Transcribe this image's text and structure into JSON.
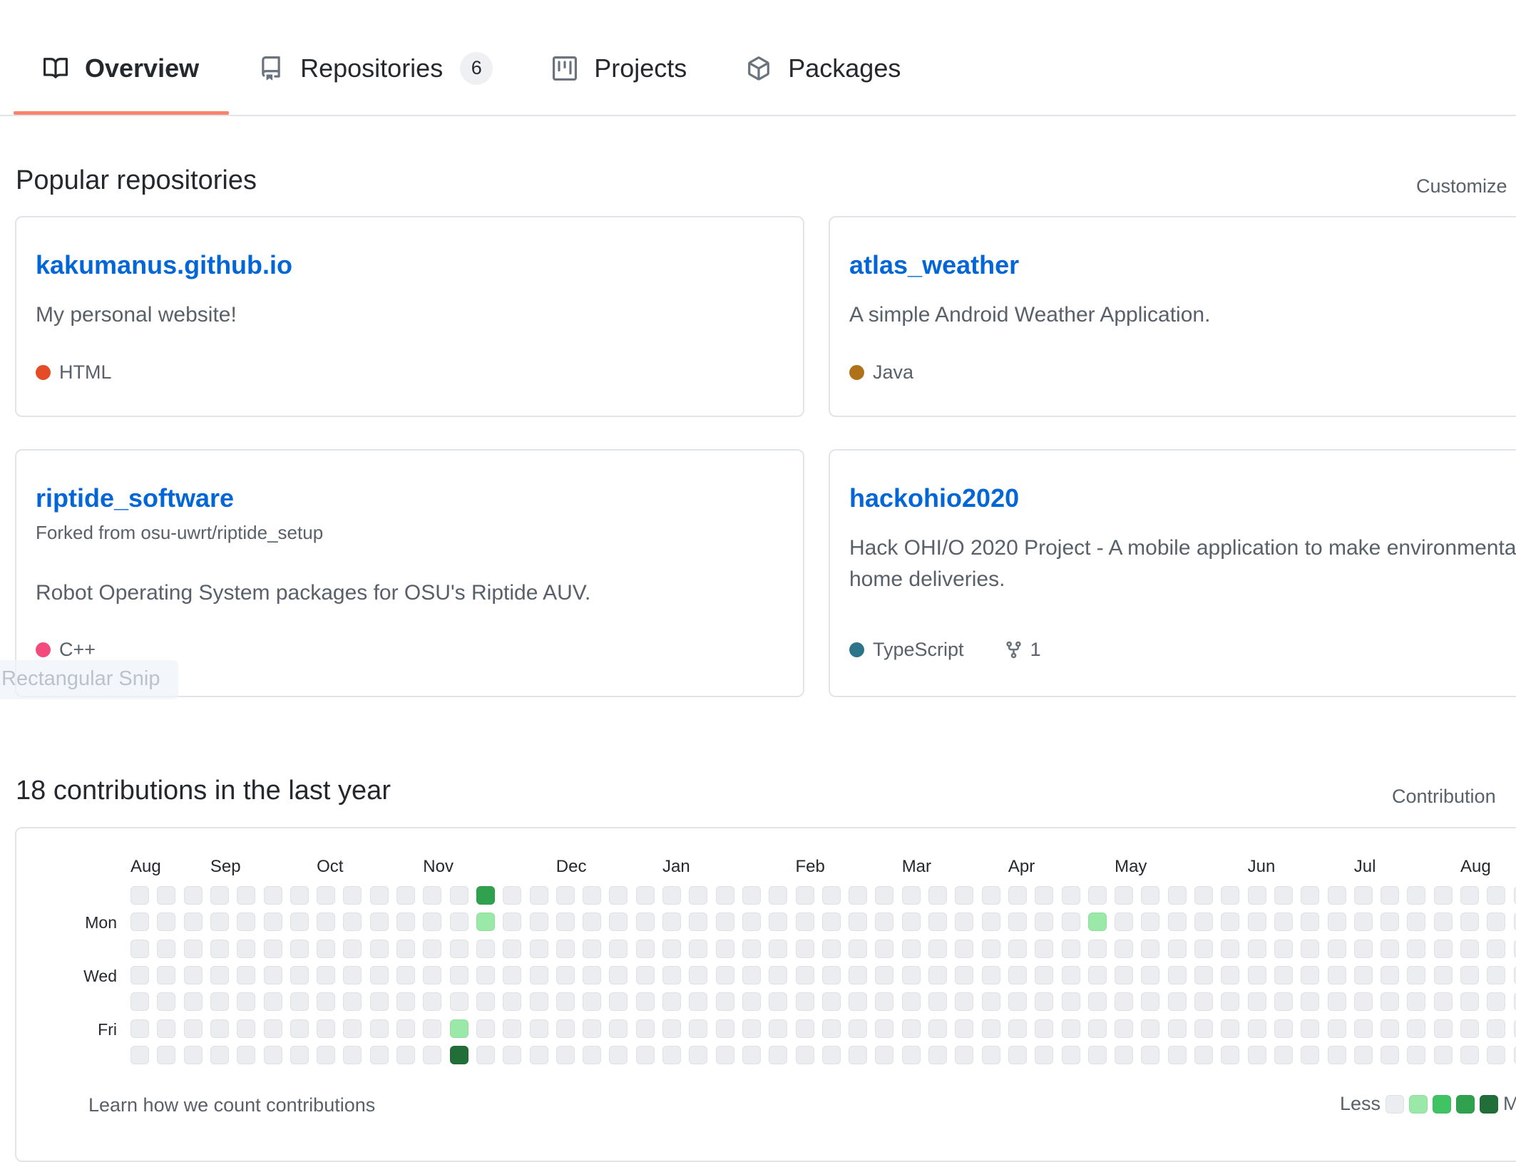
{
  "nav": {
    "tabs": [
      {
        "label": "Overview",
        "selected": true
      },
      {
        "label": "Repositories",
        "count": "6",
        "selected": false
      },
      {
        "label": "Projects",
        "selected": false
      },
      {
        "label": "Packages",
        "selected": false
      }
    ]
  },
  "popular": {
    "title": "Popular repositories",
    "customize_label": "Customize"
  },
  "repos": [
    {
      "name": "kakumanus.github.io",
      "description": "My personal website!",
      "language": "HTML",
      "language_color": "#e34c26"
    },
    {
      "name": "atlas_weather",
      "description": "A simple Android Weather Application.",
      "language": "Java",
      "language_color": "#b07219"
    },
    {
      "name": "riptide_software",
      "forked_from": "Forked from osu-uwrt/riptide_setup",
      "description": "Robot Operating System packages for OSU's Riptide AUV.",
      "language": "C++",
      "language_color": "#f34b7d"
    },
    {
      "name": "hackohio2020",
      "description": "Hack OHI/O 2020 Project - A mobile application to make environmentally friendly home deliveries.",
      "language": "TypeScript",
      "language_color": "#2b7489",
      "fork_count": "1"
    }
  ],
  "contributions": {
    "heading": "18 contributions in the last year",
    "settings_label": "Contribution",
    "footer": {
      "learn_label": "Learn how we count contributions",
      "less_label": "Less",
      "more_label": "More"
    },
    "chart_data": {
      "type": "heatmap",
      "weeks": 53,
      "days_per_week": 7,
      "day_labels": [
        {
          "label": "Mon",
          "row": 1
        },
        {
          "label": "Wed",
          "row": 3
        },
        {
          "label": "Fri",
          "row": 5
        }
      ],
      "months": [
        {
          "label": "Aug",
          "week": 0
        },
        {
          "label": "Sep",
          "week": 3
        },
        {
          "label": "Oct",
          "week": 7
        },
        {
          "label": "Nov",
          "week": 11
        },
        {
          "label": "Dec",
          "week": 16
        },
        {
          "label": "Jan",
          "week": 20
        },
        {
          "label": "Feb",
          "week": 25
        },
        {
          "label": "Mar",
          "week": 29
        },
        {
          "label": "Apr",
          "week": 33
        },
        {
          "label": "May",
          "week": 37
        },
        {
          "label": "Jun",
          "week": 42
        },
        {
          "label": "Jul",
          "week": 46
        },
        {
          "label": "Aug",
          "week": 50
        }
      ],
      "level_colors": [
        "#ebedf0",
        "#9be9a8",
        "#40c463",
        "#30a14e",
        "#216e39"
      ],
      "nonzero_cells": [
        {
          "week": 13,
          "day": 0,
          "level": 3
        },
        {
          "week": 13,
          "day": 1,
          "level": 1
        },
        {
          "week": 12,
          "day": 5,
          "level": 1
        },
        {
          "week": 12,
          "day": 6,
          "level": 4
        },
        {
          "week": 36,
          "day": 1,
          "level": 1
        }
      ]
    }
  },
  "artifact": {
    "label": "Rectangular Snip"
  }
}
